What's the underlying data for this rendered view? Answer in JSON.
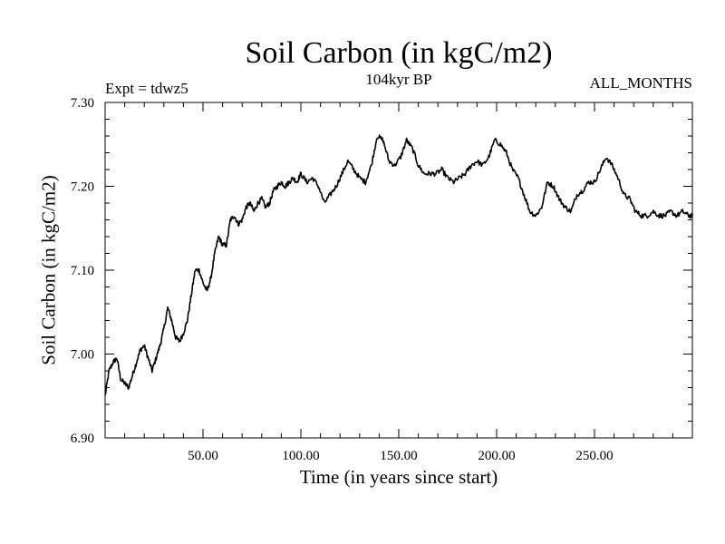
{
  "chart_data": {
    "type": "line",
    "title": "Soil Carbon (in kgC/m2)",
    "subtitle": "104kyr BP",
    "annotations": {
      "experiment": "Expt = tdwz5",
      "period": "ALL_MONTHS"
    },
    "xlabel": "Time (in years since start)",
    "ylabel": "Soil Carbon (in kgC/m2)",
    "xlim": [
      0,
      300
    ],
    "ylim": [
      6.9,
      7.3
    ],
    "xticks": [
      {
        "value": 50,
        "label": "50.00"
      },
      {
        "value": 100,
        "label": "100.00"
      },
      {
        "value": 150,
        "label": "150.00"
      },
      {
        "value": 200,
        "label": "200.00"
      },
      {
        "value": 250,
        "label": "250.00"
      }
    ],
    "yticks": [
      {
        "value": 6.9,
        "label": "6.90"
      },
      {
        "value": 7.0,
        "label": "7.00"
      },
      {
        "value": 7.1,
        "label": "7.10"
      },
      {
        "value": 7.2,
        "label": "7.20"
      },
      {
        "value": 7.3,
        "label": "7.30"
      }
    ],
    "grid": false,
    "series": [
      {
        "name": "Soil Carbon",
        "color": "#000000",
        "x": [
          0,
          2,
          4,
          6,
          8,
          10,
          12,
          14,
          16,
          18,
          20,
          22,
          24,
          26,
          28,
          30,
          32,
          34,
          36,
          38,
          40,
          42,
          44,
          46,
          48,
          50,
          52,
          54,
          56,
          58,
          60,
          62,
          64,
          66,
          68,
          70,
          72,
          74,
          76,
          78,
          80,
          82,
          84,
          86,
          88,
          90,
          92,
          94,
          96,
          98,
          100,
          103,
          106,
          109,
          112,
          115,
          118,
          121,
          124,
          127,
          130,
          133,
          136,
          139,
          142,
          145,
          148,
          151,
          154,
          157,
          160,
          163,
          166,
          169,
          172,
          175,
          178,
          181,
          184,
          187,
          190,
          193,
          196,
          199,
          202,
          205,
          208,
          211,
          214,
          217,
          220,
          223,
          226,
          229,
          232,
          235,
          238,
          241,
          244,
          247,
          250,
          253,
          256,
          259,
          262,
          265,
          268,
          271,
          274,
          277,
          280,
          283,
          286,
          289,
          292,
          295,
          298,
          300
        ],
        "y": [
          6.95,
          6.98,
          6.99,
          6.995,
          6.97,
          6.965,
          6.96,
          6.975,
          6.99,
          7.005,
          7.01,
          6.995,
          6.98,
          6.995,
          7.01,
          7.03,
          7.055,
          7.04,
          7.02,
          7.015,
          7.025,
          7.04,
          7.07,
          7.1,
          7.1,
          7.085,
          7.075,
          7.09,
          7.12,
          7.14,
          7.13,
          7.13,
          7.16,
          7.165,
          7.155,
          7.16,
          7.175,
          7.18,
          7.17,
          7.18,
          7.185,
          7.175,
          7.18,
          7.195,
          7.2,
          7.205,
          7.2,
          7.205,
          7.21,
          7.205,
          7.215,
          7.205,
          7.21,
          7.2,
          7.18,
          7.19,
          7.2,
          7.215,
          7.23,
          7.22,
          7.21,
          7.205,
          7.225,
          7.26,
          7.255,
          7.23,
          7.225,
          7.235,
          7.255,
          7.245,
          7.225,
          7.215,
          7.215,
          7.215,
          7.22,
          7.21,
          7.205,
          7.21,
          7.215,
          7.225,
          7.23,
          7.225,
          7.235,
          7.255,
          7.25,
          7.24,
          7.22,
          7.21,
          7.19,
          7.17,
          7.165,
          7.175,
          7.205,
          7.2,
          7.185,
          7.175,
          7.17,
          7.19,
          7.195,
          7.205,
          7.205,
          7.22,
          7.235,
          7.225,
          7.21,
          7.19,
          7.185,
          7.17,
          7.165,
          7.165,
          7.17,
          7.165,
          7.165,
          7.17,
          7.165,
          7.17,
          7.165,
          7.165
        ]
      }
    ]
  }
}
